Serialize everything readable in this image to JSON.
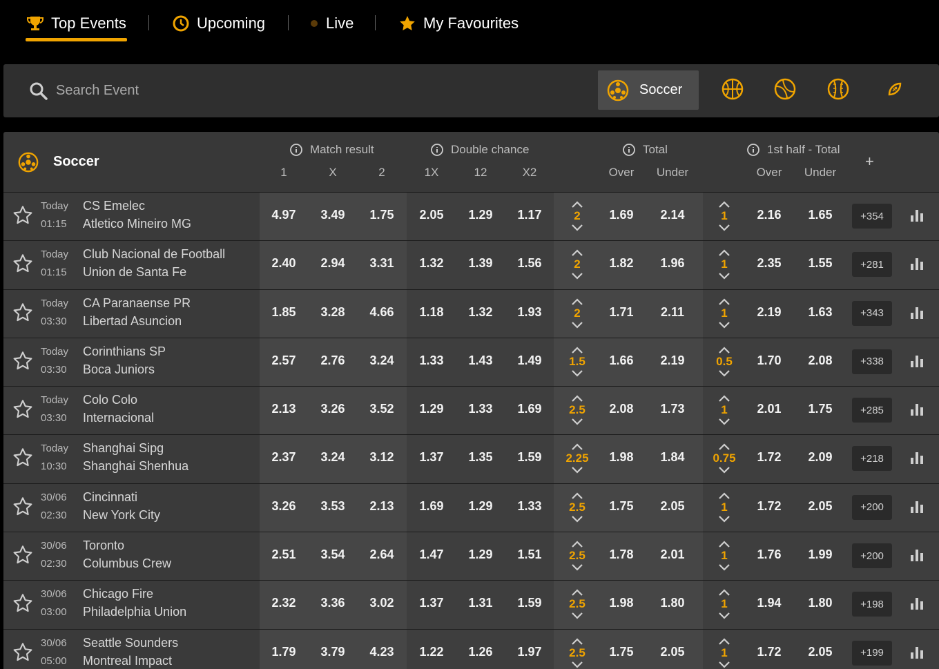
{
  "tabs": [
    {
      "label": "Top Events",
      "icon": "trophy-icon"
    },
    {
      "label": "Upcoming",
      "icon": "clock-icon"
    },
    {
      "label": "Live",
      "icon": "live-dot-icon"
    },
    {
      "label": "My Favourites",
      "icon": "star-icon"
    }
  ],
  "search": {
    "placeholder": "Search Event"
  },
  "sport_filter": {
    "selected": "Soccer",
    "others": [
      "basketball-icon",
      "tennis-icon",
      "baseball-icon",
      "american-football-icon"
    ]
  },
  "accent_color": "#f0a400",
  "table": {
    "sport": "Soccer",
    "groups": {
      "match_result": "Match result",
      "double_chance": "Double chance",
      "total": "Total",
      "first_half_total": "1st half - Total"
    },
    "columns": {
      "c1": "1",
      "cx": "X",
      "c2": "2",
      "c1x": "1X",
      "c12": "12",
      "cx2": "X2",
      "over": "Over",
      "under": "Under",
      "h_over": "Over",
      "h_under": "Under"
    },
    "plus": "+",
    "rows": [
      {
        "day": "Today",
        "time": "01:15",
        "home": "CS Emelec",
        "away": "Atletico Mineiro MG",
        "mr": [
          "4.97",
          "3.49",
          "1.75"
        ],
        "dc": [
          "2.05",
          "1.29",
          "1.17"
        ],
        "total_line": "2",
        "total": [
          "1.69",
          "2.14"
        ],
        "half_line": "1",
        "half": [
          "2.16",
          "1.65"
        ],
        "more": "+354"
      },
      {
        "day": "Today",
        "time": "01:15",
        "home": "Club Nacional de Football",
        "away": "Union de Santa Fe",
        "mr": [
          "2.40",
          "2.94",
          "3.31"
        ],
        "dc": [
          "1.32",
          "1.39",
          "1.56"
        ],
        "total_line": "2",
        "total": [
          "1.82",
          "1.96"
        ],
        "half_line": "1",
        "half": [
          "2.35",
          "1.55"
        ],
        "more": "+281"
      },
      {
        "day": "Today",
        "time": "03:30",
        "home": "CA Paranaense PR",
        "away": "Libertad Asuncion",
        "mr": [
          "1.85",
          "3.28",
          "4.66"
        ],
        "dc": [
          "1.18",
          "1.32",
          "1.93"
        ],
        "total_line": "2",
        "total": [
          "1.71",
          "2.11"
        ],
        "half_line": "1",
        "half": [
          "2.19",
          "1.63"
        ],
        "more": "+343"
      },
      {
        "day": "Today",
        "time": "03:30",
        "home": "Corinthians SP",
        "away": "Boca Juniors",
        "mr": [
          "2.57",
          "2.76",
          "3.24"
        ],
        "dc": [
          "1.33",
          "1.43",
          "1.49"
        ],
        "total_line": "1.5",
        "total": [
          "1.66",
          "2.19"
        ],
        "half_line": "0.5",
        "half": [
          "1.70",
          "2.08"
        ],
        "more": "+338"
      },
      {
        "day": "Today",
        "time": "03:30",
        "home": "Colo Colo",
        "away": "Internacional",
        "mr": [
          "2.13",
          "3.26",
          "3.52"
        ],
        "dc": [
          "1.29",
          "1.33",
          "1.69"
        ],
        "total_line": "2.5",
        "total": [
          "2.08",
          "1.73"
        ],
        "half_line": "1",
        "half": [
          "2.01",
          "1.75"
        ],
        "more": "+285"
      },
      {
        "day": "Today",
        "time": "10:30",
        "home": "Shanghai Sipg",
        "away": "Shanghai Shenhua",
        "mr": [
          "2.37",
          "3.24",
          "3.12"
        ],
        "dc": [
          "1.37",
          "1.35",
          "1.59"
        ],
        "total_line": "2.25",
        "total": [
          "1.98",
          "1.84"
        ],
        "half_line": "0.75",
        "half": [
          "1.72",
          "2.09"
        ],
        "more": "+218"
      },
      {
        "day": "30/06",
        "time": "02:30",
        "home": "Cincinnati",
        "away": "New York City",
        "mr": [
          "3.26",
          "3.53",
          "2.13"
        ],
        "dc": [
          "1.69",
          "1.29",
          "1.33"
        ],
        "total_line": "2.5",
        "total": [
          "1.75",
          "2.05"
        ],
        "half_line": "1",
        "half": [
          "1.72",
          "2.05"
        ],
        "more": "+200"
      },
      {
        "day": "30/06",
        "time": "02:30",
        "home": "Toronto",
        "away": "Columbus Crew",
        "mr": [
          "2.51",
          "3.54",
          "2.64"
        ],
        "dc": [
          "1.47",
          "1.29",
          "1.51"
        ],
        "total_line": "2.5",
        "total": [
          "1.78",
          "2.01"
        ],
        "half_line": "1",
        "half": [
          "1.76",
          "1.99"
        ],
        "more": "+200"
      },
      {
        "day": "30/06",
        "time": "03:00",
        "home": "Chicago Fire",
        "away": "Philadelphia Union",
        "mr": [
          "2.32",
          "3.36",
          "3.02"
        ],
        "dc": [
          "1.37",
          "1.31",
          "1.59"
        ],
        "total_line": "2.5",
        "total": [
          "1.98",
          "1.80"
        ],
        "half_line": "1",
        "half": [
          "1.94",
          "1.80"
        ],
        "more": "+198"
      },
      {
        "day": "30/06",
        "time": "05:00",
        "home": "Seattle Sounders",
        "away": "Montreal Impact",
        "mr": [
          "1.79",
          "3.79",
          "4.23"
        ],
        "dc": [
          "1.22",
          "1.26",
          "1.97"
        ],
        "total_line": "2.5",
        "total": [
          "1.75",
          "2.05"
        ],
        "half_line": "1",
        "half": [
          "1.72",
          "2.05"
        ],
        "more": "+199"
      }
    ]
  }
}
